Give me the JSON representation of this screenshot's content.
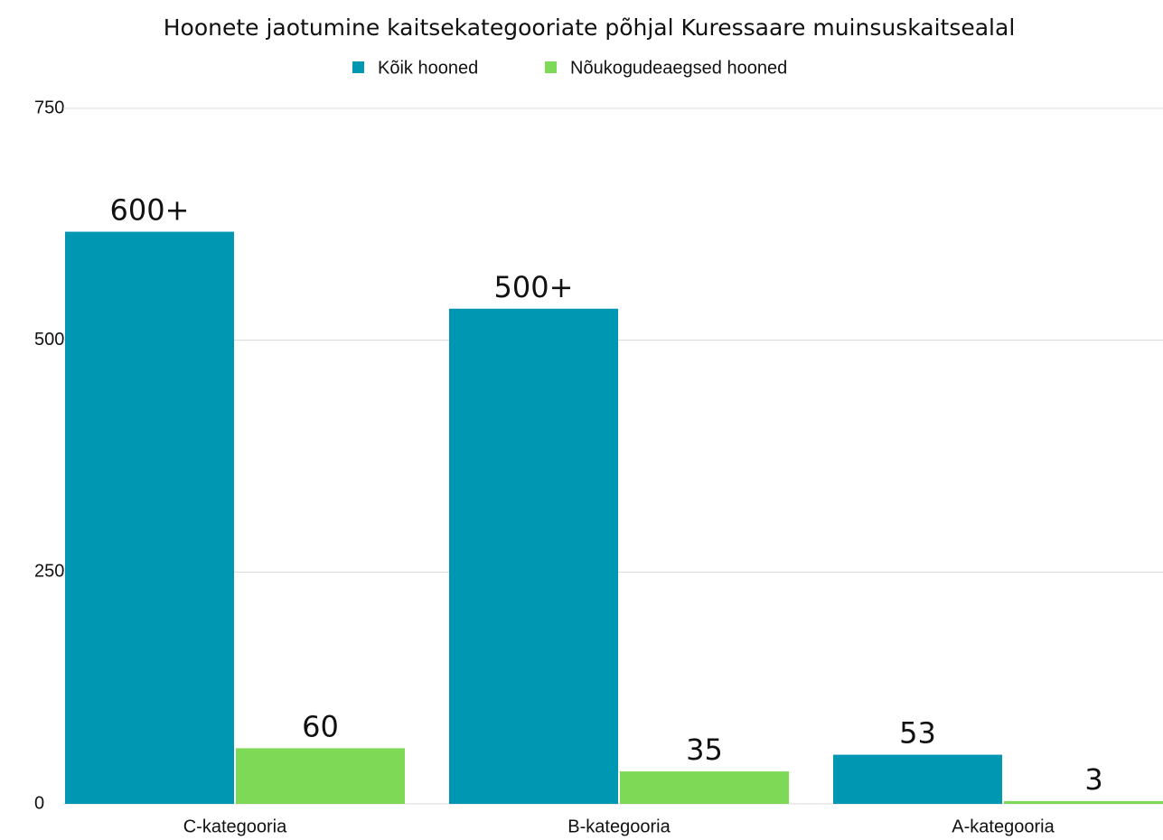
{
  "chart_data": {
    "type": "bar",
    "title": "Hoonete jaotumine kaitsekategooriate põhjal Kuressaare muinsuskaitsealal",
    "categories": [
      "C-kategooria",
      "B-kategooria",
      "A-kategooria"
    ],
    "series": [
      {
        "name": "Kõik hooned",
        "color": "#0097b2",
        "values": [
          617,
          534,
          53
        ],
        "value_labels": [
          "600+",
          "500+",
          "53"
        ]
      },
      {
        "name": "Nõukogudeaegsed hooned",
        "color": "#7ed957",
        "values": [
          60,
          35,
          3
        ],
        "value_labels": [
          "60",
          "35",
          "3"
        ]
      }
    ],
    "ylim": [
      0,
      750
    ],
    "yticks": [
      0,
      250,
      500,
      750
    ],
    "grid": true
  }
}
